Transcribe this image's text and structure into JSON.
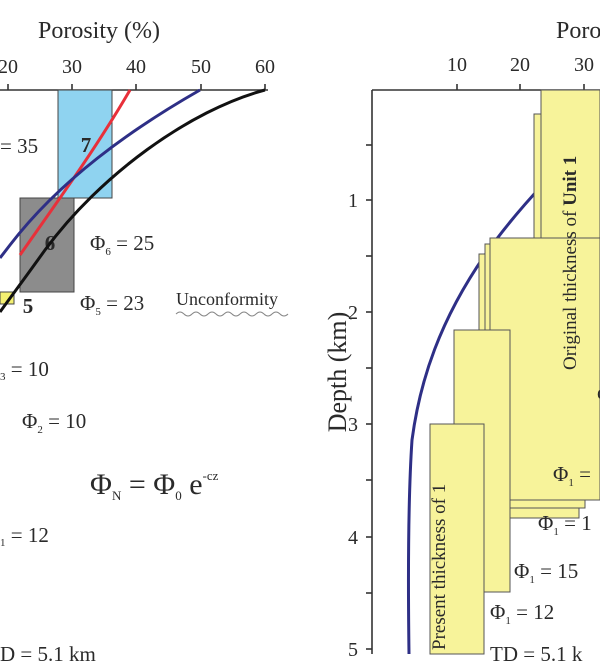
{
  "left_panel": {
    "axis_title": "Porosity (%)",
    "x_ticks": [
      "20",
      "30",
      "40",
      "50",
      "60"
    ],
    "blocks": [
      {
        "id": "7",
        "color": "#8fd3f0"
      },
      {
        "id": "6",
        "color": "#8c8c8c"
      },
      {
        "id": "5",
        "color": "#f4f071"
      }
    ],
    "labels": {
      "phi_35_tail": "= 35",
      "phi6_sym": "Φ",
      "phi6_sub": "6",
      "phi6_val": " = 25",
      "phi5_sym": "Φ",
      "phi5_sub": "5",
      "phi5_val": " = 23",
      "unconformity": "Unconformity",
      "phi3_sub": "3",
      "phi3_val": " = 10",
      "phi2_sym": "Φ",
      "phi2_sub": "2",
      "phi2_val": " = 10",
      "eq_lhs_sym": "Φ",
      "eq_lhs_sub": "N",
      "eq_mid": " = Φ",
      "eq_mid_sub": "0",
      "eq_e": " e",
      "eq_exp": "-cz",
      "phi1_sub": "1",
      "phi1_val": " = 12",
      "td": "D = 5.1 km"
    },
    "curve_colors": {
      "red": "#e8303a",
      "blue": "#2e2f86",
      "black": "#111111"
    }
  },
  "right_panel": {
    "axis_title": "Poros",
    "x_ticks": [
      "10",
      "20",
      "30"
    ],
    "y_title": "Depth (km)",
    "y_ticks": [
      "1",
      "2",
      "3",
      "4",
      "5"
    ],
    "original_thickness_label": "Original thickness of ",
    "original_thickness_bold": "Unit 1",
    "present_thickness_label": "Present thickness of 1",
    "phi_labels": [
      {
        "sym": "Φ",
        "sub": "1",
        "val": " ="
      },
      {
        "sym": "Φ",
        "sub": "1",
        "val": " = 1"
      },
      {
        "sym": "Φ",
        "sub": "1",
        "val": " = 15"
      },
      {
        "sym": "Φ",
        "sub": "1",
        "val": " = 12"
      }
    ],
    "td": "TD = 5.1 k",
    "stray_char": "d",
    "block_color": "#f7f39a"
  }
}
